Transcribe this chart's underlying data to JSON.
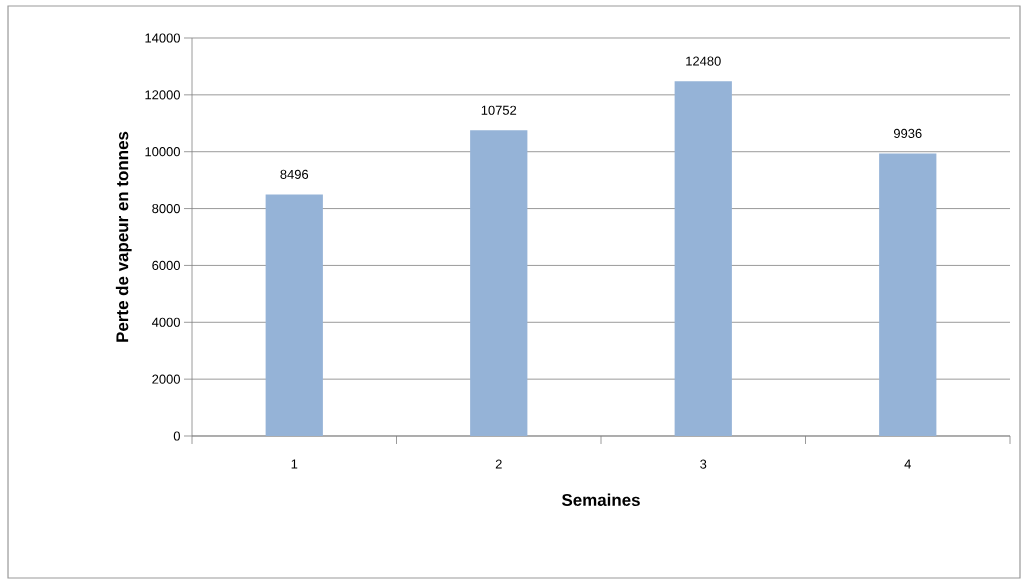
{
  "chart_data": {
    "type": "bar",
    "xlabel": "Semaines",
    "ylabel": "Perte de vapeur en tonnes",
    "categories": [
      "1",
      "2",
      "3",
      "4"
    ],
    "values": [
      8496,
      10752,
      12480,
      9936
    ],
    "color": "#95b3d7",
    "data_labels": true,
    "grid": "y",
    "ylim": [
      0,
      14000
    ],
    "yticks": [
      0,
      2000,
      4000,
      6000,
      8000,
      10000,
      12000,
      14000
    ]
  }
}
